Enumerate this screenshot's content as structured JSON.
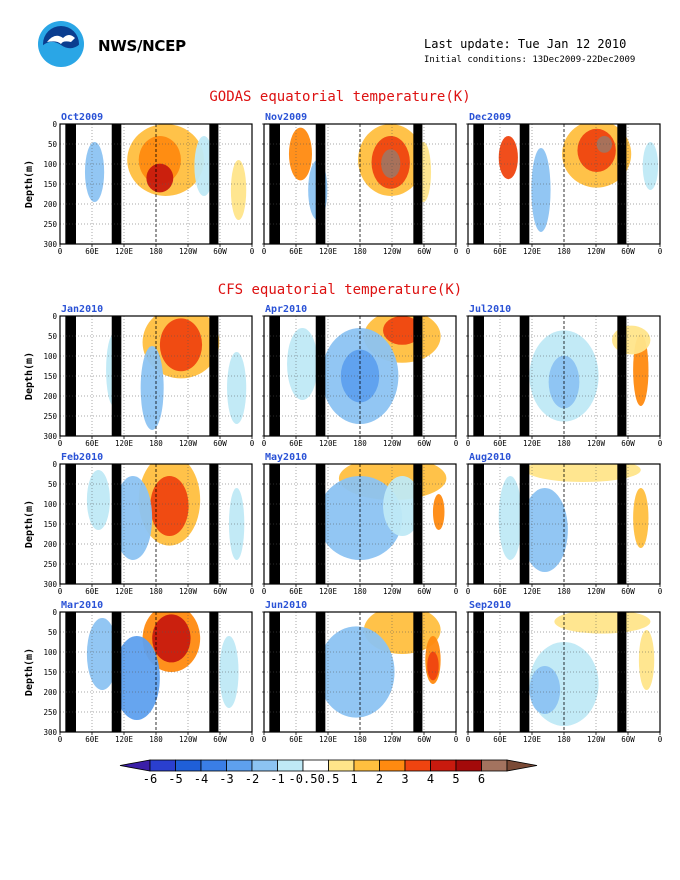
{
  "header": {
    "agency": "NWS/NCEP",
    "last_update": "Last update: Tue Jan 12 2010",
    "initial_conditions": "Initial conditions: 13Dec2009-22Dec2009"
  },
  "sections": {
    "godas_title": "GODAS equatorial temperature(K)",
    "cfs_title": "CFS equatorial temperature(K)"
  },
  "colors": {
    "title_red": "#dd1111",
    "panel_title_blue": "#2a52d6",
    "land_mask": "#000000"
  },
  "chart_data": {
    "type": "heatmap",
    "ylabel": "Depth(m)",
    "xticks": [
      "0",
      "60E",
      "120E",
      "180",
      "120W",
      "60W",
      "0"
    ],
    "yticks": [
      "0",
      "50",
      "100",
      "150",
      "200",
      "250",
      "300"
    ],
    "y_range_m": [
      0,
      300
    ],
    "colorbar": {
      "levels": [
        "-6",
        "-5",
        "-4",
        "-3",
        "-2",
        "-1",
        "-0.5",
        "0.5",
        "1",
        "2",
        "3",
        "4",
        "5",
        "6"
      ],
      "colors": [
        "#3b1fa8",
        "#2a3fcf",
        "#1f5fd8",
        "#3a7ee6",
        "#5ea0ee",
        "#8cc3f2",
        "#bfe9f6",
        "#ffffff",
        "#ffe58a",
        "#ffbf3f",
        "#ff8a10",
        "#ef4410",
        "#c81a0e",
        "#a30a0a",
        "#a3735f",
        "#7a4a36"
      ]
    },
    "panels": [
      {
        "label": "Oct2009",
        "group": "GODAS"
      },
      {
        "label": "Nov2009",
        "group": "GODAS"
      },
      {
        "label": "Dec2009",
        "group": "GODAS"
      },
      {
        "label": "Jan2010",
        "group": "CFS"
      },
      {
        "label": "Apr2010",
        "group": "CFS"
      },
      {
        "label": "Jul2010",
        "group": "CFS"
      },
      {
        "label": "Feb2010",
        "group": "CFS"
      },
      {
        "label": "May2010",
        "group": "CFS"
      },
      {
        "label": "Aug2010",
        "group": "CFS"
      },
      {
        "label": "Mar2010",
        "group": "CFS"
      },
      {
        "label": "Jun2010",
        "group": "CFS"
      },
      {
        "label": "Sep2010",
        "group": "CFS"
      }
    ]
  }
}
